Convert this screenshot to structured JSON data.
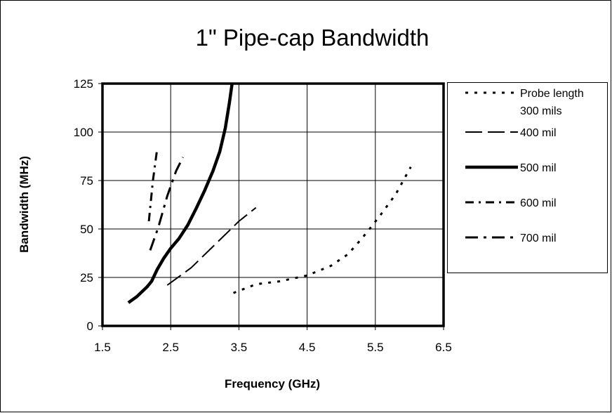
{
  "chart_data": {
    "type": "line",
    "title": "1\" Pipe-cap Bandwidth",
    "xlabel": "Frequency (GHz)",
    "ylabel": "Bandwidth (MHz)",
    "xlim": [
      1.5,
      6.5
    ],
    "ylim": [
      0,
      125
    ],
    "xticks": [
      1.5,
      2.5,
      3.5,
      4.5,
      5.5,
      6.5
    ],
    "xtick_labels": [
      "1.5",
      "2.5",
      "3.5",
      "4.5",
      "5.5",
      "6.5"
    ],
    "yticks": [
      0,
      25,
      50,
      75,
      100,
      125
    ],
    "ytick_labels": [
      "0",
      "25",
      "50",
      "75",
      "100",
      "125"
    ],
    "grid": true,
    "legend_position": "right",
    "series": [
      {
        "name": "Probe length 300 mils",
        "legend_lines": [
          "Probe length",
          "300 mils"
        ],
        "style": "dotted",
        "color": "#000000",
        "points": [
          [
            3.42,
            17
          ],
          [
            3.75,
            21.5
          ],
          [
            4.1,
            23
          ],
          [
            4.5,
            26
          ],
          [
            4.85,
            31
          ],
          [
            5.1,
            37
          ],
          [
            5.3,
            45
          ],
          [
            5.55,
            56
          ],
          [
            5.8,
            68
          ],
          [
            6.02,
            82
          ]
        ]
      },
      {
        "name": "400 mil",
        "legend_lines": [
          "400 mil"
        ],
        "style": "long-dash",
        "color": "#000000",
        "points": [
          [
            2.45,
            21
          ],
          [
            2.8,
            30
          ],
          [
            3.15,
            42
          ],
          [
            3.5,
            54
          ],
          [
            3.75,
            61
          ]
        ]
      },
      {
        "name": "500 mil",
        "legend_lines": [
          "500 mil"
        ],
        "style": "solid-thick",
        "color": "#000000",
        "points": [
          [
            1.88,
            12
          ],
          [
            2.0,
            15
          ],
          [
            2.15,
            20
          ],
          [
            2.22,
            23
          ],
          [
            2.3,
            29
          ],
          [
            2.4,
            35
          ],
          [
            2.5,
            40
          ],
          [
            2.62,
            45
          ],
          [
            2.75,
            52
          ],
          [
            2.88,
            61
          ],
          [
            3.0,
            70
          ],
          [
            3.12,
            80
          ],
          [
            3.22,
            90
          ],
          [
            3.3,
            102
          ],
          [
            3.36,
            115
          ],
          [
            3.4,
            125
          ]
        ]
      },
      {
        "name": "600 mil",
        "legend_lines": [
          "600 mil"
        ],
        "style": "dash-dot",
        "color": "#000000",
        "points": [
          [
            2.18,
            54
          ],
          [
            2.24,
            75
          ],
          [
            2.3,
            91
          ]
        ]
      },
      {
        "name": "700 mil",
        "legend_lines": [
          "700 mil"
        ],
        "style": "dash-dot-long",
        "color": "#000000",
        "points": [
          [
            2.2,
            39
          ],
          [
            2.32,
            51
          ],
          [
            2.45,
            67
          ],
          [
            2.58,
            80
          ],
          [
            2.68,
            87
          ]
        ]
      }
    ]
  }
}
